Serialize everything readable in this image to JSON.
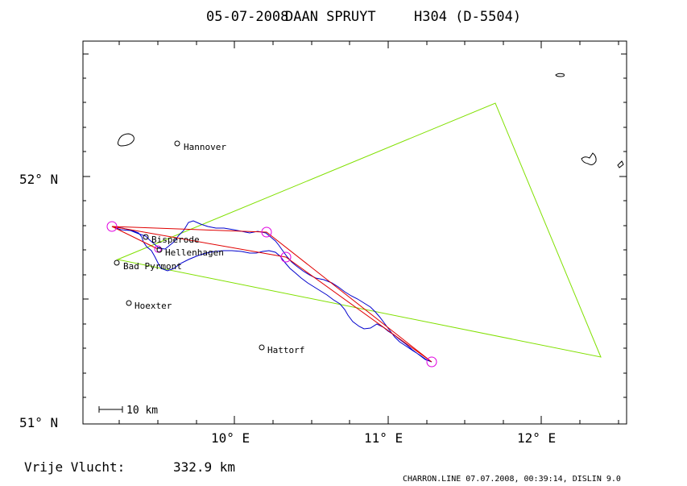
{
  "header": {
    "date": "05-07-2008",
    "pilot": "DAAN SPRUYT",
    "glider": "H304 (D-5504)"
  },
  "axes": {
    "x_ticks": [
      {
        "label": "10° E",
        "lon": 10
      },
      {
        "label": "11° E",
        "lon": 11
      },
      {
        "label": "12° E",
        "lon": 12
      }
    ],
    "y_ticks": [
      {
        "label": "52° N",
        "lat": 52
      },
      {
        "label": "51° N",
        "lat": 51
      }
    ]
  },
  "scale_bar": {
    "label": "10 km"
  },
  "places": [
    {
      "name": "Hannover",
      "lon": 9.64,
      "lat": 52.13
    },
    {
      "name": "Bisperode",
      "lon": 9.46,
      "lat": 51.75
    },
    {
      "name": "Hellenhagen",
      "lon": 9.53,
      "lat": 51.7
    },
    {
      "name": "Bad Pyrmont",
      "lon": 9.22,
      "lat": 51.65
    },
    {
      "name": "Hoexter",
      "lon": 9.3,
      "lat": 51.48
    },
    {
      "name": "Hattorf",
      "lon": 10.18,
      "lat": 51.3
    }
  ],
  "footer": {
    "free_flight_label": "Vrije Vlucht:",
    "free_flight_value": "332.9 km",
    "credits": "CHARRON.LINE 07.07.2008, 00:39:14, DISLIN 9.0"
  },
  "colors": {
    "triangle": "#80e000",
    "route": "#e00000",
    "track": "#0000cc",
    "turnpoint": "#e000e0"
  }
}
